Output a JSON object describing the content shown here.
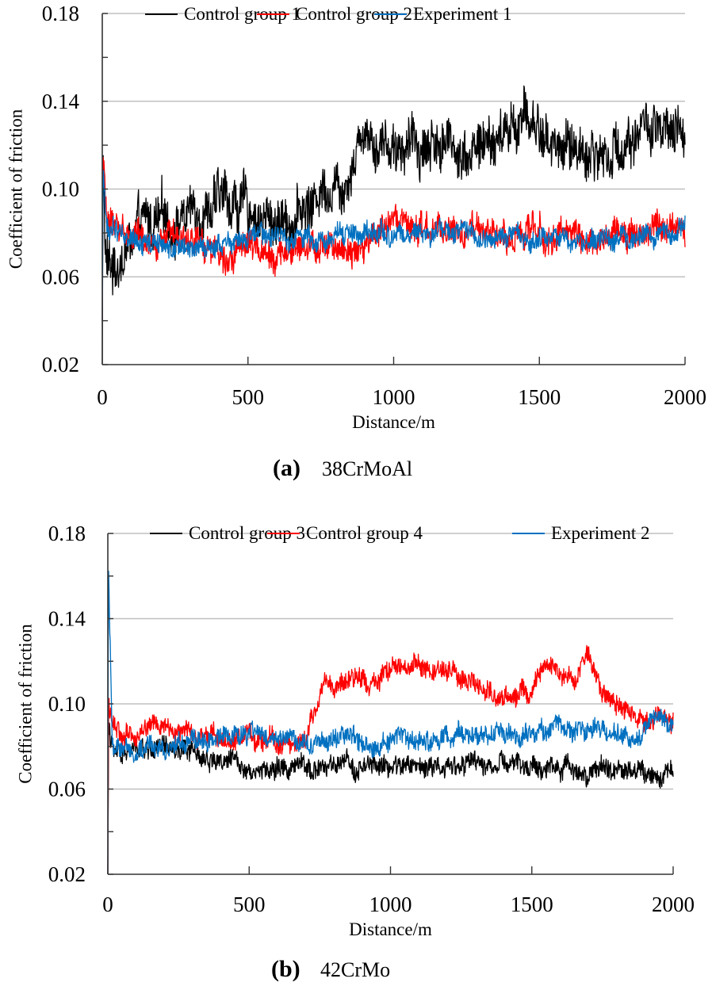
{
  "chart_data": [
    {
      "type": "line",
      "panel": "a",
      "caption_label": "(a)",
      "caption_text": "38CrMoAl",
      "title": "",
      "xlabel": "Distance/m",
      "ylabel": "Coefficient of friction",
      "xlim": [
        0,
        2000
      ],
      "ylim": [
        0.02,
        0.18
      ],
      "x_ticks": [
        "0",
        "500",
        "1000",
        "1500",
        "2000"
      ],
      "y_ticks": [
        "0.02",
        "0.06",
        "0.10",
        "0.14",
        "0.18"
      ],
      "grid": true,
      "legend_position": "top",
      "series": [
        {
          "name": "Control group 1",
          "color": "#000000",
          "points": [
            [
              0,
              0.02
            ],
            [
              3,
              0.12
            ],
            [
              10,
              0.07
            ],
            [
              30,
              0.062
            ],
            [
              80,
              0.072
            ],
            [
              150,
              0.083
            ],
            [
              250,
              0.086
            ],
            [
              350,
              0.093
            ],
            [
              430,
              0.095
            ],
            [
              500,
              0.091
            ],
            [
              580,
              0.085
            ],
            [
              650,
              0.088
            ],
            [
              720,
              0.092
            ],
            [
              760,
              0.103
            ],
            [
              830,
              0.104
            ],
            [
              900,
              0.13
            ],
            [
              950,
              0.122
            ],
            [
              1050,
              0.12
            ],
            [
              1150,
              0.122
            ],
            [
              1250,
              0.118
            ],
            [
              1350,
              0.121
            ],
            [
              1450,
              0.133
            ],
            [
              1550,
              0.12
            ],
            [
              1650,
              0.118
            ],
            [
              1750,
              0.115
            ],
            [
              1850,
              0.13
            ],
            [
              1950,
              0.12
            ],
            [
              2000,
              0.123
            ]
          ],
          "noise": 0.012
        },
        {
          "name": "Control group 2",
          "color": "#ff0000",
          "points": [
            [
              0,
              0.04
            ],
            [
              3,
              0.118
            ],
            [
              15,
              0.085
            ],
            [
              100,
              0.08
            ],
            [
              200,
              0.077
            ],
            [
              300,
              0.073
            ],
            [
              500,
              0.073
            ],
            [
              700,
              0.071
            ],
            [
              900,
              0.076
            ],
            [
              1000,
              0.083
            ],
            [
              1100,
              0.08
            ],
            [
              1300,
              0.079
            ],
            [
              1500,
              0.08
            ],
            [
              1700,
              0.078
            ],
            [
              1800,
              0.081
            ],
            [
              2000,
              0.08
            ]
          ],
          "noise": 0.007
        },
        {
          "name": "Experiment 1",
          "color": "#0070c0",
          "points": [
            [
              0,
              0.04
            ],
            [
              3,
              0.108
            ],
            [
              15,
              0.082
            ],
            [
              100,
              0.079
            ],
            [
              200,
              0.074
            ],
            [
              300,
              0.072
            ],
            [
              500,
              0.077
            ],
            [
              700,
              0.078
            ],
            [
              900,
              0.08
            ],
            [
              1100,
              0.079
            ],
            [
              1300,
              0.078
            ],
            [
              1500,
              0.078
            ],
            [
              1700,
              0.076
            ],
            [
              1850,
              0.079
            ],
            [
              2000,
              0.081
            ]
          ],
          "noise": 0.005
        }
      ]
    },
    {
      "type": "line",
      "panel": "b",
      "caption_label": "(b)",
      "caption_text": "42CrMo",
      "title": "",
      "xlabel": "Distance/m",
      "ylabel": "Coefficient of friction",
      "xlim": [
        0,
        2000
      ],
      "ylim": [
        0.02,
        0.18
      ],
      "x_ticks": [
        "0",
        "500",
        "1000",
        "1500",
        "2000"
      ],
      "y_ticks": [
        "0.02",
        "0.06",
        "0.10",
        "0.14",
        "0.18"
      ],
      "grid": true,
      "legend_position": "top",
      "series": [
        {
          "name": "Control group 3",
          "color": "#000000",
          "points": [
            [
              0,
              0.02
            ],
            [
              3,
              0.09
            ],
            [
              20,
              0.076
            ],
            [
              150,
              0.079
            ],
            [
              300,
              0.076
            ],
            [
              450,
              0.073
            ],
            [
              550,
              0.069
            ],
            [
              800,
              0.07
            ],
            [
              1000,
              0.07
            ],
            [
              1200,
              0.072
            ],
            [
              1500,
              0.07
            ],
            [
              1800,
              0.069
            ],
            [
              2000,
              0.068
            ]
          ],
          "noise": 0.005
        },
        {
          "name": "Control group 4",
          "color": "#ff0000",
          "points": [
            [
              0,
              0.02
            ],
            [
              3,
              0.1
            ],
            [
              15,
              0.094
            ],
            [
              50,
              0.082
            ],
            [
              150,
              0.09
            ],
            [
              300,
              0.086
            ],
            [
              400,
              0.084
            ],
            [
              600,
              0.082
            ],
            [
              700,
              0.083
            ],
            [
              760,
              0.108
            ],
            [
              900,
              0.111
            ],
            [
              1000,
              0.115
            ],
            [
              1100,
              0.118
            ],
            [
              1200,
              0.114
            ],
            [
              1300,
              0.108
            ],
            [
              1400,
              0.104
            ],
            [
              1500,
              0.104
            ],
            [
              1550,
              0.116
            ],
            [
              1650,
              0.11
            ],
            [
              1700,
              0.125
            ],
            [
              1750,
              0.103
            ],
            [
              1800,
              0.103
            ],
            [
              1870,
              0.09
            ],
            [
              1950,
              0.095
            ],
            [
              2000,
              0.093
            ]
          ],
          "noise": 0.005
        },
        {
          "name": "Experiment 2",
          "color": "#0070c0",
          "points": [
            [
              0,
              0.02
            ],
            [
              2,
              0.168
            ],
            [
              15,
              0.082
            ],
            [
              100,
              0.079
            ],
            [
              300,
              0.082
            ],
            [
              500,
              0.085
            ],
            [
              700,
              0.083
            ],
            [
              900,
              0.083
            ],
            [
              1100,
              0.083
            ],
            [
              1300,
              0.085
            ],
            [
              1500,
              0.085
            ],
            [
              1600,
              0.09
            ],
            [
              1750,
              0.088
            ],
            [
              1850,
              0.083
            ],
            [
              1950,
              0.095
            ],
            [
              2000,
              0.088
            ]
          ],
          "noise": 0.005
        }
      ]
    }
  ]
}
